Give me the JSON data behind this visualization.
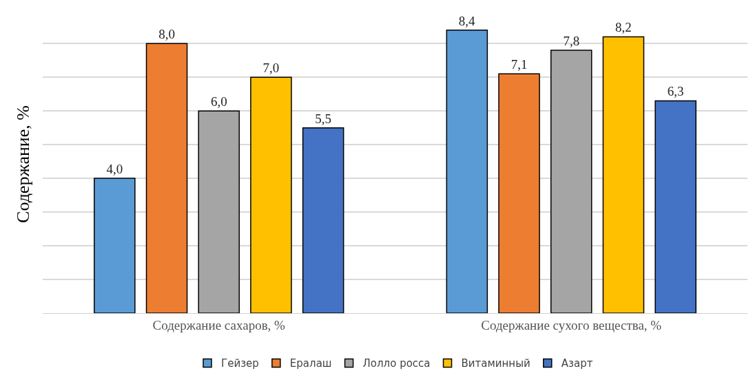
{
  "chart_data": {
    "type": "bar",
    "ylabel": "Содержание, %",
    "categories": [
      "Содержание сахаров, %",
      "Содержание сухого вещества, %"
    ],
    "series": [
      {
        "name": "Гейзер",
        "color": "#5b9bd5",
        "values": [
          4.0,
          8.4
        ],
        "value_labels": [
          "4,0",
          "8,4"
        ]
      },
      {
        "name": "Ералаш",
        "color": "#ed7d31",
        "values": [
          8.0,
          7.1
        ],
        "value_labels": [
          "8,0",
          "7,1"
        ]
      },
      {
        "name": "Лолло росса",
        "color": "#a5a5a5",
        "values": [
          6.0,
          7.8
        ],
        "value_labels": [
          "6,0",
          "7,8"
        ]
      },
      {
        "name": "Витаминный",
        "color": "#ffc000",
        "values": [
          7.0,
          8.2
        ],
        "value_labels": [
          "7,0",
          "8,2"
        ]
      },
      {
        "name": "Азарт",
        "color": "#4472c4",
        "values": [
          5.5,
          6.3
        ],
        "value_labels": [
          "5,5",
          "6,3"
        ]
      }
    ],
    "tick_labels": "x",
    "grid": "y",
    "legend": "bottom"
  }
}
